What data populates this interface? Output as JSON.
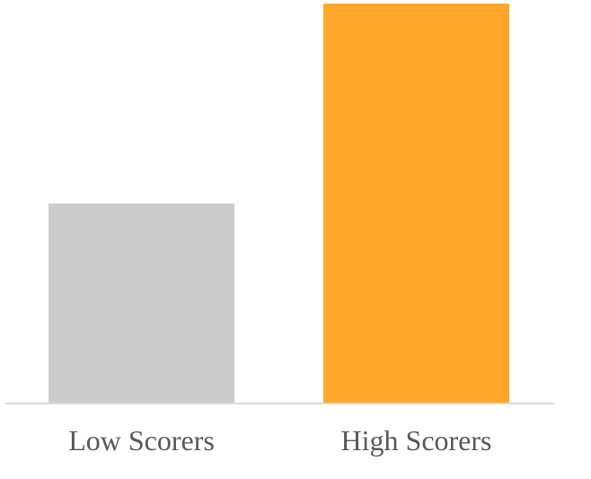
{
  "chart_data": {
    "type": "bar",
    "title": "",
    "xlabel": "",
    "ylabel": "",
    "categories": [
      "Low Scorers",
      "High Scorers"
    ],
    "values": [
      0.5,
      1.0
    ],
    "ylim": [
      0,
      1.0
    ],
    "grid": false,
    "legend": "none",
    "colors": [
      "#cccccc",
      "#ffa62b"
    ],
    "baseline_color": "#d9d9d9",
    "label_color": "#595959"
  }
}
